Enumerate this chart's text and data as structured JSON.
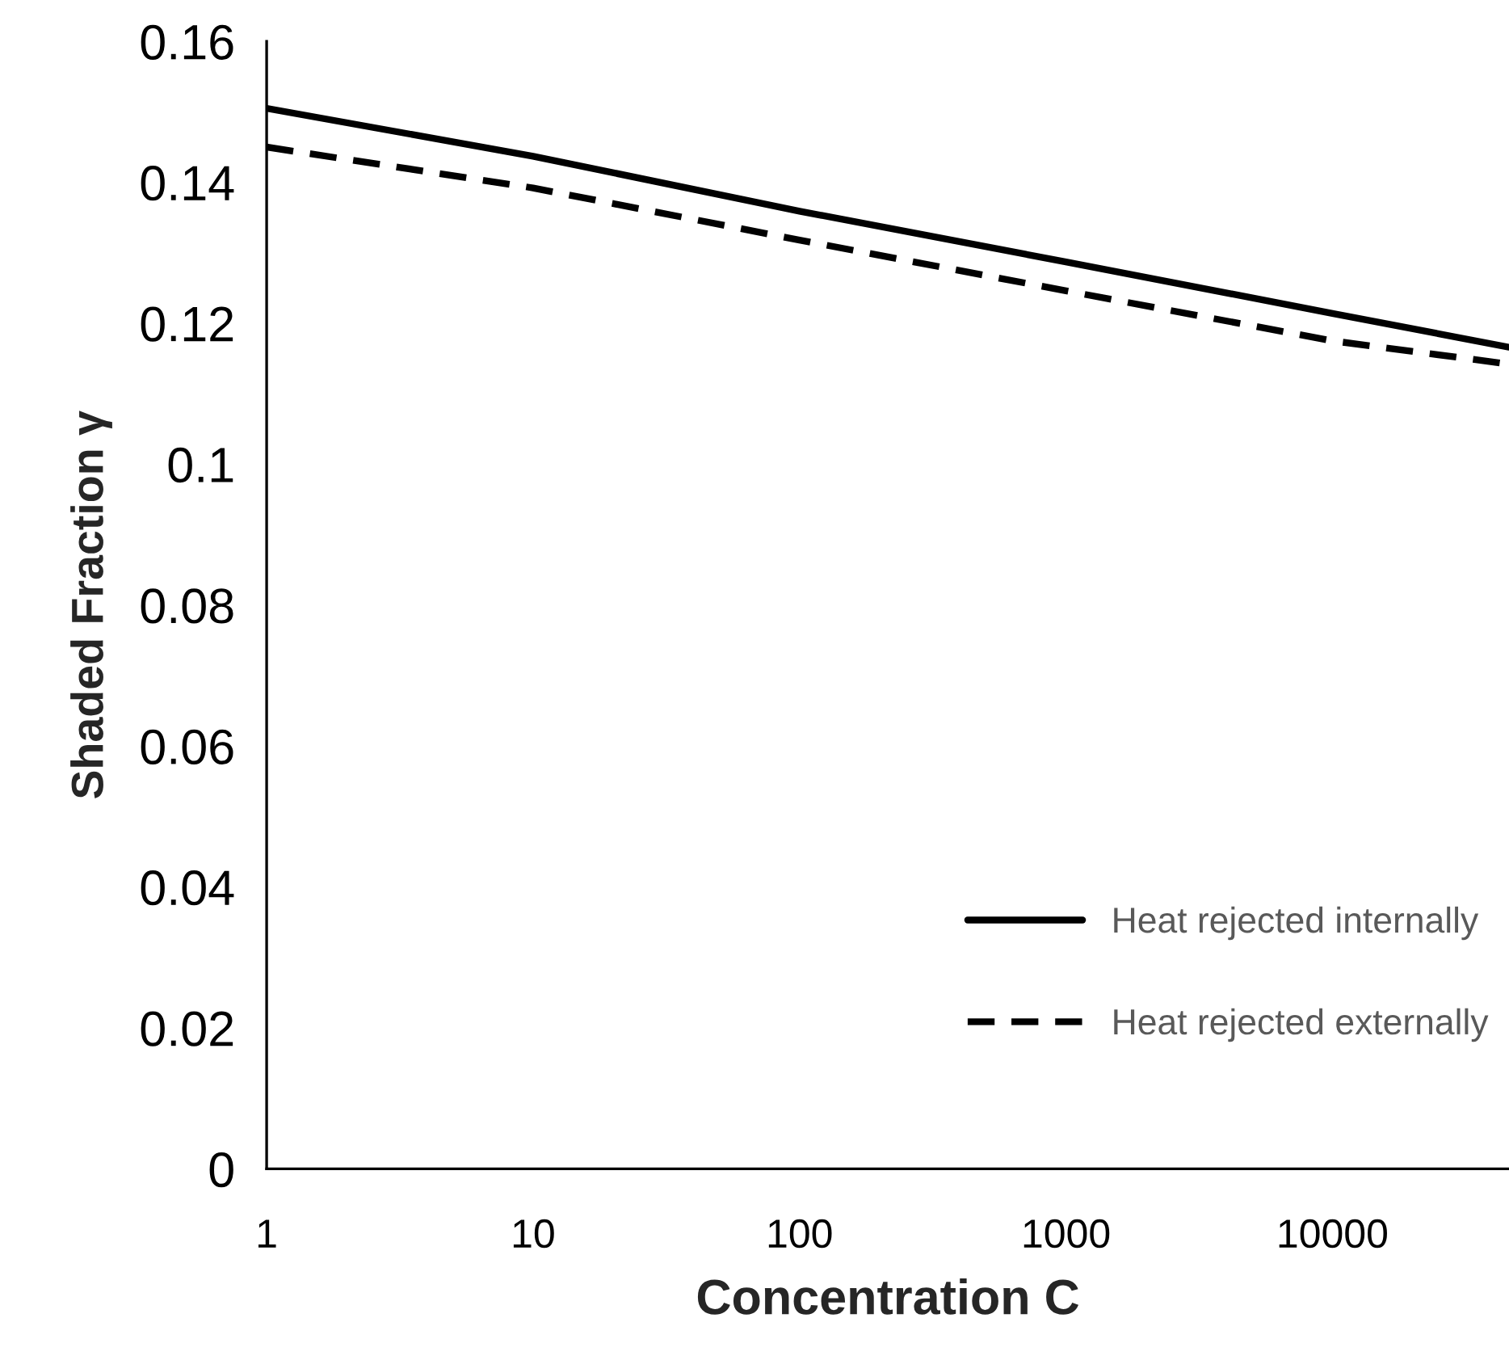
{
  "chart_data": {
    "type": "line",
    "xlabel": "Concentration C",
    "ylabel": "Shaded Fraction γ",
    "x": [
      1,
      10,
      100,
      1000,
      10000,
      46000
    ],
    "series": [
      {
        "name": "Heat rejected internally",
        "color": "#000000",
        "line_style": "solid",
        "values": [
          0.1505,
          0.1437,
          0.1359,
          0.1287,
          0.1214,
          0.1166
        ]
      },
      {
        "name": "Heat rejected externally",
        "color": "#000000",
        "line_style": "dashed",
        "values": [
          0.145,
          0.1392,
          0.1318,
          0.1246,
          0.1175,
          0.1142
        ]
      }
    ],
    "log": "x",
    "xlim": [
      1,
      46000
    ],
    "xticks": [
      1,
      10,
      100,
      1000,
      10000
    ],
    "ylim": [
      0,
      0.16
    ],
    "yticks": [
      0,
      {
        "value": 0.02,
        "label": "0.02"
      },
      {
        "value": 0.04,
        "label": "0.04"
      },
      {
        "value": 0.06,
        "label": "0.06"
      },
      {
        "value": 0.08,
        "label": "0.08"
      },
      0.1,
      {
        "value": 0.12,
        "label": "0.12"
      },
      {
        "value": 0.14,
        "label": "0.14"
      },
      {
        "value": 0.16,
        "label": "0.16"
      }
    ],
    "grid": false,
    "legend": "bottom right"
  }
}
